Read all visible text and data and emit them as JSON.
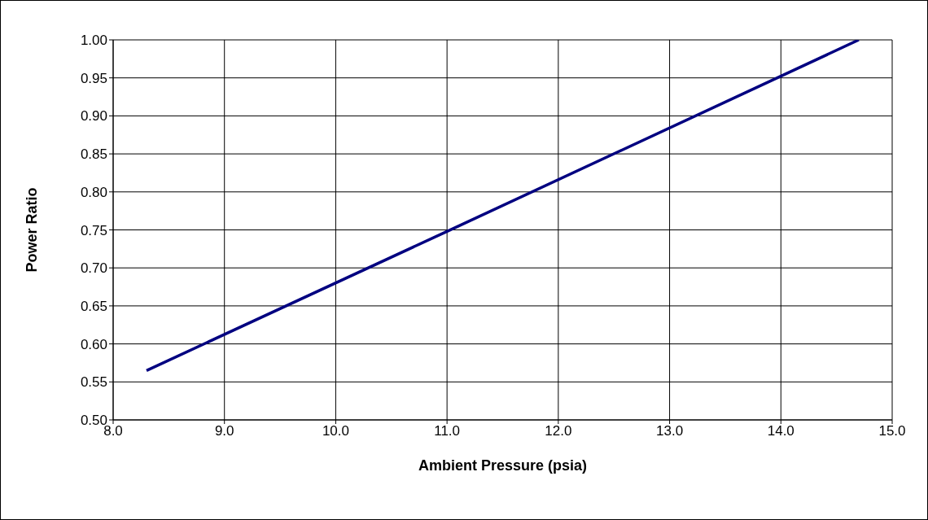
{
  "chart_data": {
    "type": "line",
    "xlabel": "Ambient Pressure (psia)",
    "ylabel": "Power Ratio",
    "x": [
      8.3,
      11.0,
      14.7
    ],
    "series": [
      {
        "color": "#000080",
        "values": [
          0.565,
          0.748,
          1.0
        ]
      }
    ],
    "xlim": [
      8.0,
      15.0
    ],
    "xticks": [
      {
        "value": 8,
        "label": "8.0"
      },
      {
        "value": 9,
        "label": "9.0"
      },
      {
        "value": 10,
        "label": "10.0"
      },
      {
        "value": 11,
        "label": "11.0"
      },
      {
        "value": 12,
        "label": "12.0"
      },
      {
        "value": 13,
        "label": "13.0"
      },
      {
        "value": 14,
        "label": "14.0"
      },
      {
        "value": 15,
        "label": "15.0"
      }
    ],
    "ylim": [
      0.5,
      1.0
    ],
    "yticks": [
      {
        "value": 0.5,
        "label": "0.50"
      },
      {
        "value": 0.55,
        "label": "0.55"
      },
      {
        "value": 0.6,
        "label": "0.60"
      },
      {
        "value": 0.65,
        "label": "0.65"
      },
      {
        "value": 0.7,
        "label": "0.70"
      },
      {
        "value": 0.75,
        "label": "0.75"
      },
      {
        "value": 0.8,
        "label": "0.80"
      },
      {
        "value": 0.85,
        "label": "0.85"
      },
      {
        "value": 0.9,
        "label": "0.90"
      },
      {
        "value": 0.95,
        "label": "0.95"
      },
      {
        "value": 1.0,
        "label": "1.00"
      }
    ],
    "grid": true
  }
}
